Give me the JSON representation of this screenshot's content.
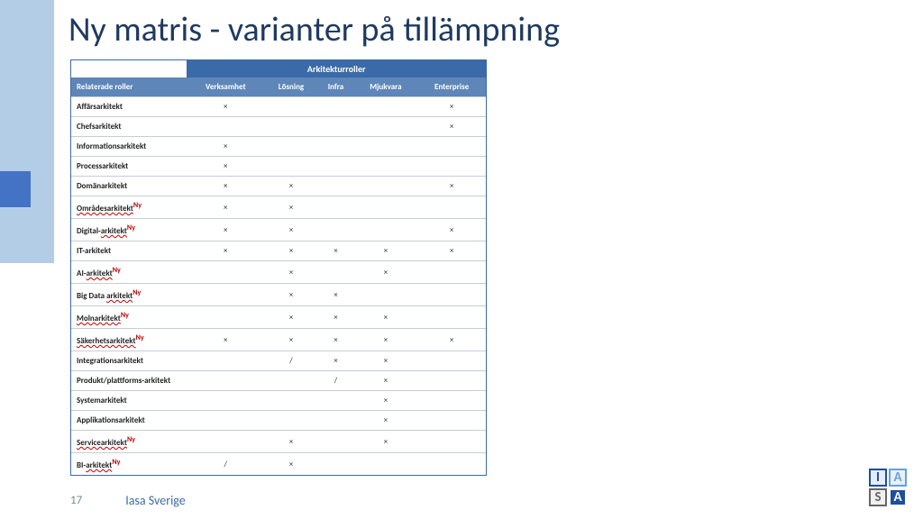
{
  "title": "Ny matris - varianter på tillämpning",
  "page_number": "17",
  "org": "Iasa Sverige",
  "colors": {
    "header_bg": "#3a6aa8",
    "subheader_bg": "#5e86b8",
    "title_color": "#1f3a5f",
    "sidebar_light": "#b4cde6",
    "accent": "#4472c4",
    "ny_color": "#c00000",
    "border": "#c7cdd4"
  },
  "table": {
    "group_header_blank": "",
    "group_header": "Arkitekturroller",
    "row_header": "Relaterade roller",
    "columns": [
      "Verksamhet",
      "Lösning",
      "Infra",
      "Mjukvara",
      "Enterprise"
    ],
    "rows": [
      {
        "label": "Affärsarkitekt",
        "ny": false,
        "underline": "",
        "marks": [
          "×",
          "",
          "",
          "",
          "×"
        ]
      },
      {
        "label": "Chefsarkitekt",
        "ny": false,
        "underline": "",
        "marks": [
          "",
          "",
          "",
          "",
          "×"
        ]
      },
      {
        "label": "Informationsarkitekt",
        "ny": false,
        "underline": "",
        "marks": [
          "×",
          "",
          "",
          "",
          ""
        ]
      },
      {
        "label": "Processarkitekt",
        "ny": false,
        "underline": "",
        "marks": [
          "×",
          "",
          "",
          "",
          ""
        ]
      },
      {
        "label": "Domänarkitekt",
        "ny": false,
        "underline": "",
        "marks": [
          "×",
          "×",
          "",
          "",
          "×"
        ]
      },
      {
        "label": "Områdesarkitekt",
        "ny": true,
        "underline": "Områdesarkitekt",
        "marks": [
          "×",
          "×",
          "",
          "",
          ""
        ]
      },
      {
        "label": "Digital-arkitekt",
        "ny": true,
        "underline": "arkitekt",
        "marks": [
          "×",
          "×",
          "",
          "",
          "×"
        ]
      },
      {
        "label": "IT-arkitekt",
        "ny": false,
        "underline": "",
        "marks": [
          "×",
          "×",
          "×",
          "×",
          "×"
        ]
      },
      {
        "label": "AI-arkitekt",
        "ny": true,
        "underline": "arkitekt",
        "marks": [
          "",
          "×",
          "",
          "×",
          ""
        ]
      },
      {
        "label": "Big Data arkitekt",
        "ny": true,
        "underline": "arkitekt",
        "marks": [
          "",
          "×",
          "×",
          "",
          ""
        ]
      },
      {
        "label": "Molnarkitekt",
        "ny": true,
        "underline": "Molnarkitekt",
        "marks": [
          "",
          "×",
          "×",
          "×",
          ""
        ]
      },
      {
        "label": "Säkerhetsarkitekt",
        "ny": true,
        "underline": "Säkerhetsarkitekt",
        "marks": [
          "×",
          "×",
          "×",
          "×",
          "×"
        ]
      },
      {
        "label": "Integrationsarkitekt",
        "ny": false,
        "underline": "",
        "marks": [
          "",
          "/",
          "×",
          "×",
          ""
        ]
      },
      {
        "label": "Produkt/plattforms-arkitekt",
        "ny": false,
        "underline": "",
        "marks": [
          "",
          "",
          "/",
          "×",
          ""
        ]
      },
      {
        "label": "Systemarkitekt",
        "ny": false,
        "underline": "",
        "marks": [
          "",
          "",
          "",
          "×",
          ""
        ]
      },
      {
        "label": "Applikationsarkitekt",
        "ny": false,
        "underline": "",
        "marks": [
          "",
          "",
          "",
          "×",
          ""
        ]
      },
      {
        "label": "Servicearkitekt",
        "ny": true,
        "underline": "Servicearkitekt",
        "marks": [
          "",
          "×",
          "",
          "×",
          ""
        ]
      },
      {
        "label": "BI-arkitekt",
        "ny": true,
        "underline": "arkitekt",
        "marks": [
          "/",
          "×",
          "",
          "",
          ""
        ]
      }
    ],
    "ny_suffix": "Ny"
  },
  "logo": {
    "tl": "I",
    "tr": "A",
    "bl": "S",
    "br": "A"
  }
}
